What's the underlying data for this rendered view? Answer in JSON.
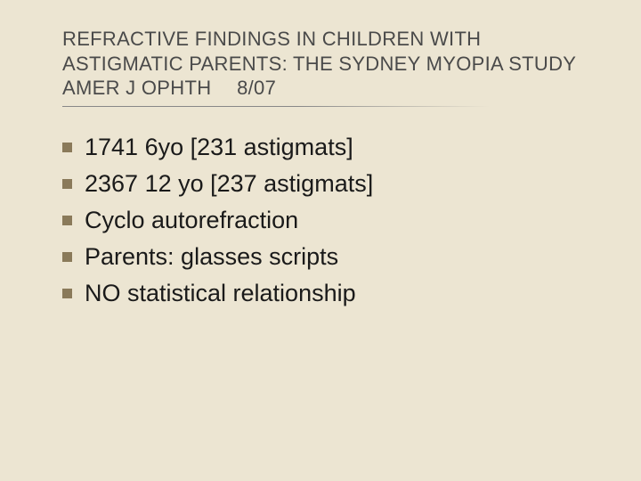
{
  "slide": {
    "background_color": "#ece5d2",
    "title_color": "#4a4a4a",
    "title_fontsize": 22,
    "body_color": "#1a1a1a",
    "body_fontsize": 27,
    "bullet_marker_color": "#8a7a5a",
    "bullet_marker_size": 11,
    "rule_color": "#888888",
    "title": "REFRACTIVE FINDINGS IN CHILDREN WITH ASTIGMATIC PARENTS: THE SYDNEY MYOPIA STUDY AMER J OPHTH  8/07",
    "bullets": [
      "1741 6yo [231 astigmats]",
      "2367 12 yo [237 astigmats]",
      "Cyclo autorefraction",
      "Parents:  glasses scripts",
      "NO  statistical relationship"
    ]
  }
}
